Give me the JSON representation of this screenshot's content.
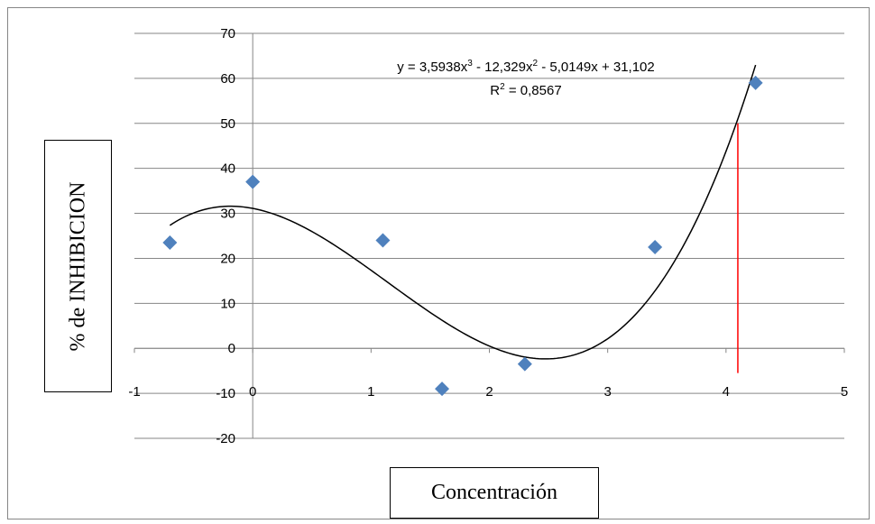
{
  "chart_data": {
    "type": "scatter",
    "title": "",
    "xlabel": "Concentración",
    "ylabel": "% de INHIBICION",
    "xlim": [
      -1,
      5
    ],
    "ylim": [
      -20,
      70
    ],
    "x_ticks": [
      -1,
      0,
      1,
      2,
      3,
      4,
      5
    ],
    "y_ticks": [
      -20,
      -10,
      0,
      10,
      20,
      30,
      40,
      50,
      60,
      70
    ],
    "x_tick_labels": [
      "-1",
      "0",
      "1",
      "2",
      "3",
      "4",
      "5"
    ],
    "y_tick_labels": [
      "-20",
      "-10",
      "0",
      "10",
      "20",
      "30",
      "40",
      "50",
      "60",
      "70"
    ],
    "grid": "horizontal",
    "series": [
      {
        "x": [
          -0.7,
          0,
          1.1,
          1.6,
          2.3,
          3.4,
          4.25
        ],
        "y": [
          23.5,
          37,
          24,
          -9,
          -3.5,
          22.5,
          59
        ],
        "marker": "diamond",
        "color": "#4f81bd"
      }
    ],
    "trendline": {
      "type": "polynomial",
      "coefficients": [
        3.5938,
        -12.329,
        -5.0149,
        31.102
      ],
      "coefficient_note": "3,5938, -12,329, -5,0149, 31,102",
      "x_range": [
        -0.7,
        4.25
      ],
      "color": "#000000",
      "equation_parts": {
        "p1": "y = 3,5938x",
        "e1": "3",
        "p2": " - 12,329x",
        "e2": "2",
        "p3": " - 5,0149x + 31,102"
      },
      "r2_parts": {
        "p1": "R",
        "e1": "2",
        "p2": " = 0,8567"
      }
    },
    "reference_line": {
      "x": 4.1,
      "y_from": -5.5,
      "y_to": 50,
      "color": "#ff0000"
    }
  }
}
